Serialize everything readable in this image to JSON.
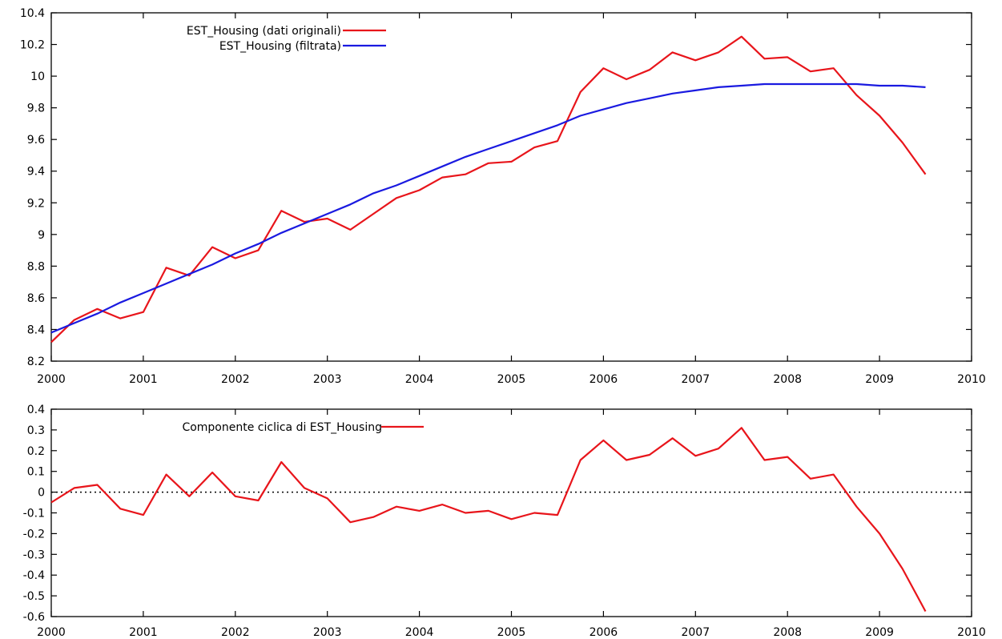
{
  "chart_data": [
    {
      "type": "line",
      "title": "",
      "xlabel": "",
      "ylabel": "",
      "xlim": [
        2000,
        2010
      ],
      "ylim": [
        8.2,
        10.4
      ],
      "x_ticks": [
        "2000",
        "2001",
        "2002",
        "2003",
        "2004",
        "2005",
        "2006",
        "2007",
        "2008",
        "2009",
        "2010"
      ],
      "y_ticks": [
        "8.2",
        "8.4",
        "8.6",
        "8.8",
        "9",
        "9.2",
        "9.4",
        "9.6",
        "9.8",
        "10",
        "10.2",
        "10.4"
      ],
      "legend_position": "top-left",
      "grid": false,
      "x": [
        2000.0,
        2000.25,
        2000.5,
        2000.75,
        2001.0,
        2001.25,
        2001.5,
        2001.75,
        2002.0,
        2002.25,
        2002.5,
        2002.75,
        2003.0,
        2003.25,
        2003.5,
        2003.75,
        2004.0,
        2004.25,
        2004.5,
        2004.75,
        2005.0,
        2005.25,
        2005.5,
        2005.75,
        2006.0,
        2006.25,
        2006.5,
        2006.75,
        2007.0,
        2007.25,
        2007.5,
        2007.75,
        2008.0,
        2008.25,
        2008.5,
        2008.75,
        2009.0,
        2009.25,
        2009.5
      ],
      "series": [
        {
          "name": "EST_Housing (dati originali)",
          "color": "#e8151b",
          "values": [
            8.32,
            8.46,
            8.53,
            8.47,
            8.51,
            8.79,
            8.74,
            8.92,
            8.85,
            8.9,
            9.15,
            9.08,
            9.1,
            9.03,
            9.13,
            9.23,
            9.28,
            9.36,
            9.38,
            9.45,
            9.46,
            9.55,
            9.59,
            9.9,
            10.05,
            9.98,
            10.04,
            10.15,
            10.1,
            10.15,
            10.25,
            10.11,
            10.12,
            10.03,
            10.05,
            9.88,
            9.75,
            9.58,
            9.38
          ]
        },
        {
          "name": "EST_Housing (filtrata)",
          "color": "#1a1ae0",
          "values": [
            8.38,
            8.44,
            8.5,
            8.57,
            8.63,
            8.69,
            8.75,
            8.81,
            8.88,
            8.94,
            9.01,
            9.07,
            9.13,
            9.19,
            9.26,
            9.31,
            9.37,
            9.43,
            9.49,
            9.54,
            9.59,
            9.64,
            9.69,
            9.75,
            9.79,
            9.83,
            9.86,
            9.89,
            9.91,
            9.93,
            9.94,
            9.95,
            9.95,
            9.95,
            9.95,
            9.95,
            9.94,
            9.94,
            9.93
          ]
        }
      ]
    },
    {
      "type": "line",
      "title": "",
      "xlabel": "",
      "ylabel": "",
      "xlim": [
        2000,
        2010
      ],
      "ylim": [
        -0.6,
        0.4
      ],
      "x_ticks": [
        "2000",
        "2001",
        "2002",
        "2003",
        "2004",
        "2005",
        "2006",
        "2007",
        "2008",
        "2009",
        "2010"
      ],
      "y_ticks": [
        "-0.6",
        "-0.5",
        "-0.4",
        "-0.3",
        "-0.2",
        "-0.1",
        "0",
        "0.1",
        "0.2",
        "0.3",
        "0.4"
      ],
      "legend_position": "top-left",
      "grid": false,
      "reference_line": 0,
      "x": [
        2000.0,
        2000.25,
        2000.5,
        2000.75,
        2001.0,
        2001.25,
        2001.5,
        2001.75,
        2002.0,
        2002.25,
        2002.5,
        2002.75,
        2003.0,
        2003.25,
        2003.5,
        2003.75,
        2004.0,
        2004.25,
        2004.5,
        2004.75,
        2005.0,
        2005.25,
        2005.5,
        2005.75,
        2006.0,
        2006.25,
        2006.5,
        2006.75,
        2007.0,
        2007.25,
        2007.5,
        2007.75,
        2008.0,
        2008.25,
        2008.5,
        2008.75,
        2009.0,
        2009.25,
        2009.5
      ],
      "series": [
        {
          "name": "Componente ciclica di EST_Housing",
          "color": "#e8151b",
          "values": [
            -0.05,
            0.02,
            0.035,
            -0.08,
            -0.11,
            0.085,
            -0.02,
            0.095,
            -0.02,
            -0.04,
            0.145,
            0.02,
            -0.03,
            -0.145,
            -0.12,
            -0.07,
            -0.09,
            -0.06,
            -0.1,
            -0.09,
            -0.13,
            -0.1,
            -0.11,
            0.155,
            0.25,
            0.155,
            0.18,
            0.26,
            0.175,
            0.21,
            0.31,
            0.155,
            0.17,
            0.065,
            0.085,
            -0.07,
            -0.2,
            -0.37,
            -0.575
          ]
        }
      ]
    }
  ]
}
